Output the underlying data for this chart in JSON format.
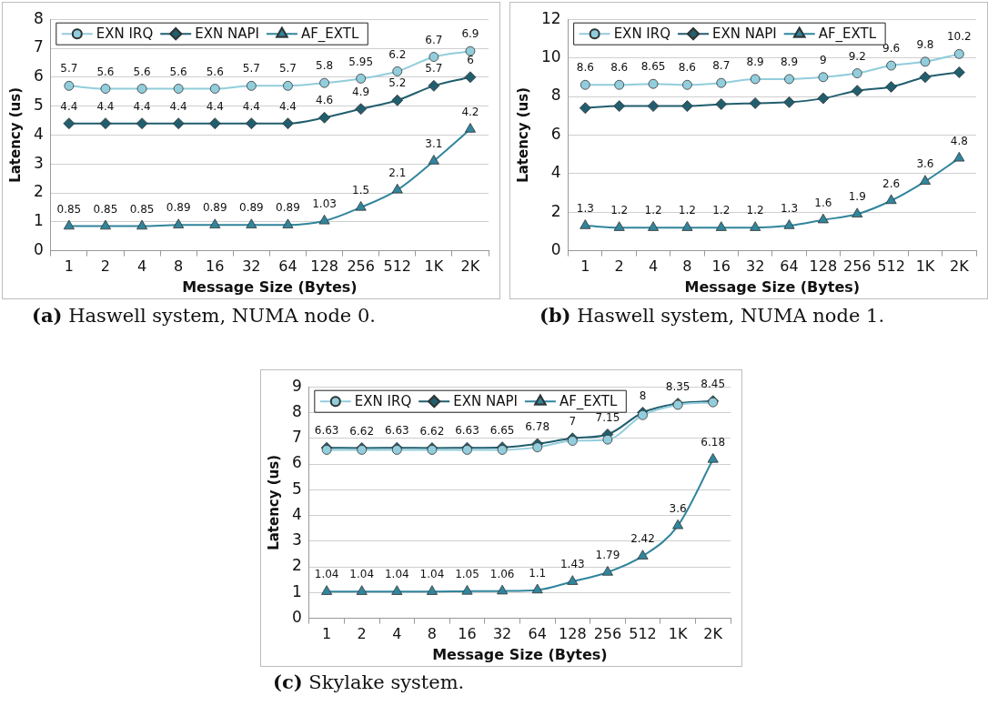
{
  "chart_data": [
    {
      "type": "line",
      "xlabel": "Message Size (Bytes)",
      "ylabel": "Latency (us)",
      "categories": [
        "1",
        "2",
        "4",
        "8",
        "16",
        "32",
        "64",
        "128",
        "256",
        "512",
        "1K",
        "2K"
      ],
      "ylim": [
        0,
        8
      ],
      "yticks": [
        0,
        1,
        2,
        3,
        4,
        5,
        6,
        7,
        8
      ],
      "grid": "y",
      "legend": "top left",
      "annotations": [
        "(a) Haswell system, NUMA node 0."
      ],
      "series": [
        {
          "name": "EXN IRQ",
          "color": "#92cddc",
          "marker": "circle",
          "values": [
            5.7,
            5.6,
            5.6,
            5.6,
            5.6,
            5.7,
            5.7,
            5.8,
            5.95,
            6.2,
            6.7,
            6.9
          ],
          "value_labels": [
            "5.7",
            "5.6",
            "5.6",
            "5.6",
            "5.6",
            "5.7",
            "5.7",
            "5.8",
            "5.95",
            "6.2",
            "6.7",
            "6.9"
          ]
        },
        {
          "name": "EXN NAPI",
          "color": "#215e6e",
          "marker": "diamond",
          "values": [
            4.4,
            4.4,
            4.4,
            4.4,
            4.4,
            4.4,
            4.4,
            4.6,
            4.9,
            5.2,
            5.7,
            6
          ],
          "value_labels": [
            "4.4",
            "4.4",
            "4.4",
            "4.4",
            "4.4",
            "4.4",
            "4.4",
            "4.6",
            "4.9",
            "5.2",
            "5.7",
            "6"
          ]
        },
        {
          "name": "AF_EXTL",
          "color": "#31859c",
          "marker": "triangle",
          "values": [
            0.85,
            0.85,
            0.85,
            0.89,
            0.89,
            0.89,
            0.89,
            1.03,
            1.5,
            2.1,
            3.1,
            4.2
          ],
          "value_labels": [
            "0.85",
            "0.85",
            "0.85",
            "0.89",
            "0.89",
            "0.89",
            "0.89",
            "1.03",
            "1.5",
            "2.1",
            "3.1",
            "4.2"
          ]
        }
      ]
    },
    {
      "type": "line",
      "xlabel": "Message Size (Bytes)",
      "ylabel": "Latency (us)",
      "categories": [
        "1",
        "2",
        "4",
        "8",
        "16",
        "32",
        "64",
        "128",
        "256",
        "512",
        "1K",
        "2K"
      ],
      "ylim": [
        0,
        12
      ],
      "yticks": [
        0,
        2,
        4,
        6,
        8,
        10,
        12
      ],
      "grid": "y",
      "legend": "top left",
      "annotations": [
        "(b) Haswell system, NUMA node 1."
      ],
      "series": [
        {
          "name": "EXN IRQ",
          "color": "#92cddc",
          "marker": "circle",
          "values": [
            8.6,
            8.6,
            8.65,
            8.6,
            8.7,
            8.9,
            8.9,
            9,
            9.2,
            9.6,
            9.8,
            10.2
          ],
          "value_labels": [
            "8.6",
            "8.6",
            "8.65",
            "8.6",
            "8.7",
            "8.9",
            "8.9",
            "9",
            "9.2",
            "9.6",
            "9.8",
            "10.2"
          ]
        },
        {
          "name": "EXN NAPI",
          "color": "#215e6e",
          "marker": "diamond",
          "values": [
            7.4,
            7.5,
            7.5,
            7.5,
            7.6,
            7.65,
            7.7,
            7.9,
            8.3,
            8.5,
            9.0,
            9.25
          ]
        },
        {
          "name": "AF_EXTL",
          "color": "#31859c",
          "marker": "triangle",
          "values": [
            1.3,
            1.2,
            1.2,
            1.2,
            1.2,
            1.2,
            1.3,
            1.6,
            1.9,
            2.6,
            3.6,
            4.8
          ],
          "value_labels": [
            "1.3",
            "1.2",
            "1.2",
            "1.2",
            "1.2",
            "1.2",
            "1.3",
            "1.6",
            "1.9",
            "2.6",
            "3.6",
            "4.8"
          ]
        }
      ]
    },
    {
      "type": "line",
      "xlabel": "Message Size (Bytes)",
      "ylabel": "Latency (us)",
      "categories": [
        "1",
        "2",
        "4",
        "8",
        "16",
        "32",
        "64",
        "128",
        "256",
        "512",
        "1K",
        "2K"
      ],
      "ylim": [
        0,
        9
      ],
      "yticks": [
        0,
        1,
        2,
        3,
        4,
        5,
        6,
        7,
        8,
        9
      ],
      "grid": "y",
      "legend": "top left",
      "annotations": [
        "(c) Skylake system."
      ],
      "series": [
        {
          "name": "EXN IRQ",
          "color": "#92cddc",
          "marker": "circle",
          "values": [
            6.55,
            6.55,
            6.55,
            6.55,
            6.55,
            6.55,
            6.65,
            6.9,
            6.95,
            7.9,
            8.3,
            8.4
          ]
        },
        {
          "name": "EXN NAPI",
          "color": "#215e6e",
          "marker": "diamond",
          "values": [
            6.63,
            6.62,
            6.63,
            6.62,
            6.63,
            6.65,
            6.78,
            7,
            7.15,
            8,
            8.35,
            8.45
          ],
          "value_labels": [
            "6.63",
            "6.62",
            "6.63",
            "6.62",
            "6.63",
            "6.65",
            "6.78",
            "7",
            "7.15",
            "8",
            "8.35",
            "8.45"
          ]
        },
        {
          "name": "AF_EXTL",
          "color": "#31859c",
          "marker": "triangle",
          "values": [
            1.04,
            1.04,
            1.04,
            1.04,
            1.05,
            1.06,
            1.1,
            1.43,
            1.79,
            2.42,
            3.6,
            6.18
          ],
          "value_labels": [
            "1.04",
            "1.04",
            "1.04",
            "1.04",
            "1.05",
            "1.06",
            "1.1",
            "1.43",
            "1.79",
            "2.42",
            "3.6",
            "6.18"
          ]
        }
      ]
    }
  ]
}
